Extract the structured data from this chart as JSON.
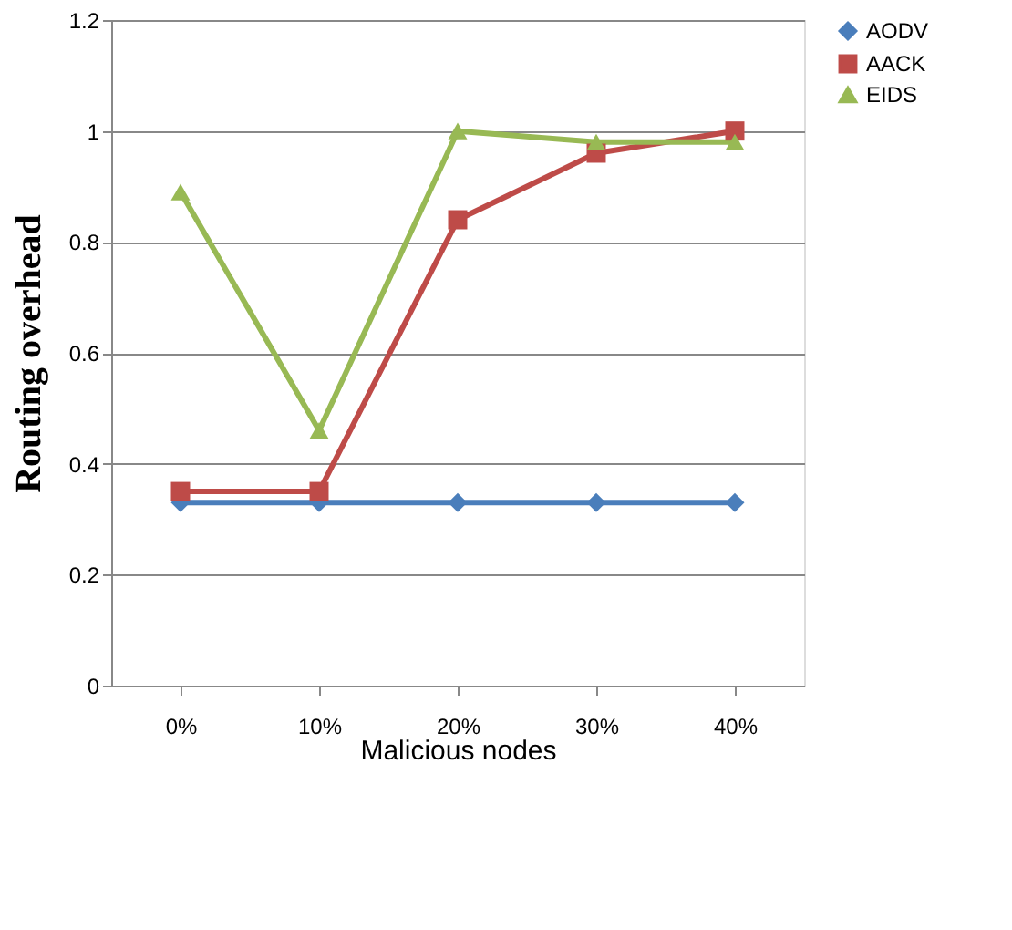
{
  "chart_data": {
    "type": "line",
    "xlabel": "Malicious nodes",
    "ylabel": "Routing overhead",
    "categories": [
      "0%",
      "10%",
      "20%",
      "30%",
      "40%"
    ],
    "series": [
      {
        "name": "AODV",
        "color": "#4a7ebb",
        "marker": "diamond",
        "values": [
          0.33,
          0.33,
          0.33,
          0.33,
          0.33
        ]
      },
      {
        "name": "AACK",
        "color": "#be4b48",
        "marker": "square",
        "values": [
          0.35,
          0.35,
          0.84,
          0.96,
          1.0
        ]
      },
      {
        "name": "EIDS",
        "color": "#98b954",
        "marker": "triangle",
        "values": [
          0.89,
          0.46,
          1.0,
          0.98,
          0.98
        ]
      }
    ],
    "ylim": [
      0,
      1.2
    ],
    "yticks": [
      0,
      0.2,
      0.4,
      0.6,
      0.8,
      1,
      1.2
    ],
    "grid": "y",
    "legend": "right",
    "line_style": "solid"
  }
}
